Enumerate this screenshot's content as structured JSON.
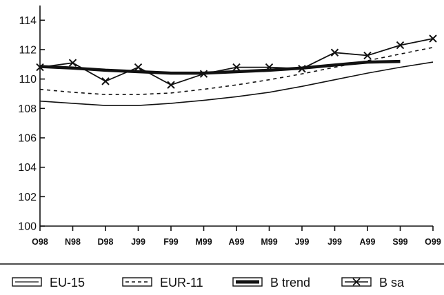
{
  "chart_data": {
    "type": "line",
    "title": "",
    "xlabel": "",
    "ylabel": "",
    "categories": [
      "O98",
      "N98",
      "D98",
      "J99",
      "F99",
      "M99",
      "A99",
      "M99",
      "J99",
      "J99",
      "A99",
      "S99",
      "O99"
    ],
    "y_ticks": [
      "100",
      "102",
      "104",
      "106",
      "108",
      "110",
      "112",
      "114"
    ],
    "ylim": [
      100,
      115
    ],
    "grid": false,
    "legend_position": "bottom",
    "series": [
      {
        "name": "EU-15",
        "style": "thin-solid",
        "values": [
          108.5,
          108.35,
          108.2,
          108.2,
          108.35,
          108.55,
          108.8,
          109.1,
          109.5,
          109.95,
          110.4,
          110.8,
          111.15
        ]
      },
      {
        "name": "EUR-11",
        "style": "dashed",
        "values": [
          109.3,
          109.1,
          108.95,
          108.95,
          109.05,
          109.3,
          109.6,
          109.95,
          110.35,
          110.8,
          111.25,
          111.7,
          112.15
        ]
      },
      {
        "name": "B trend",
        "style": "thick-solid",
        "values": [
          110.85,
          110.75,
          110.6,
          110.5,
          110.4,
          110.4,
          110.5,
          110.6,
          110.75,
          110.95,
          111.15,
          111.2,
          null
        ]
      },
      {
        "name": "B sa",
        "style": "solid-x-markers",
        "values": [
          110.8,
          111.1,
          109.85,
          110.8,
          109.6,
          110.35,
          110.8,
          110.8,
          110.7,
          111.8,
          111.6,
          112.3,
          112.75
        ]
      }
    ]
  }
}
